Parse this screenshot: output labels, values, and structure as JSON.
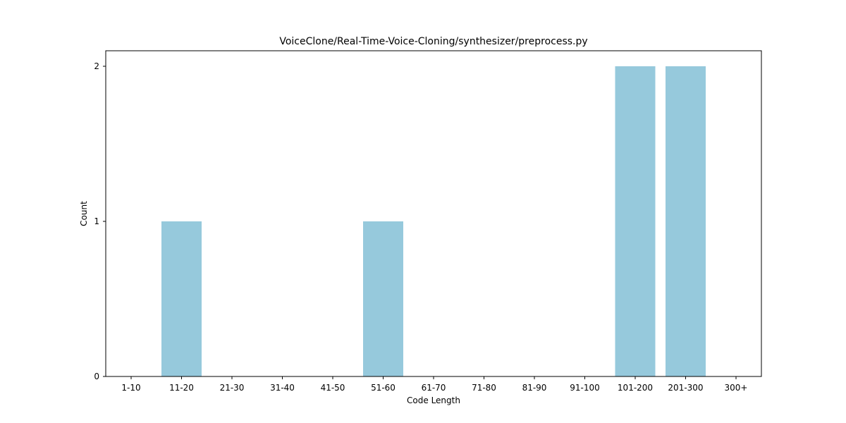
{
  "chart_data": {
    "type": "bar",
    "title": "VoiceClone/Real-Time-Voice-Cloning/synthesizer/preprocess.py",
    "xlabel": "Code Length",
    "ylabel": "Count",
    "categories": [
      "1-10",
      "11-20",
      "21-30",
      "31-40",
      "41-50",
      "51-60",
      "61-70",
      "71-80",
      "81-90",
      "91-100",
      "101-200",
      "201-300",
      "300+"
    ],
    "values": [
      0,
      1,
      0,
      0,
      0,
      1,
      0,
      0,
      0,
      0,
      2,
      2,
      0
    ],
    "ylim": [
      0,
      2.1
    ],
    "yticks": [
      0,
      1,
      2
    ],
    "bar_color": "#96c9dc",
    "grid": false,
    "legend": "none"
  }
}
